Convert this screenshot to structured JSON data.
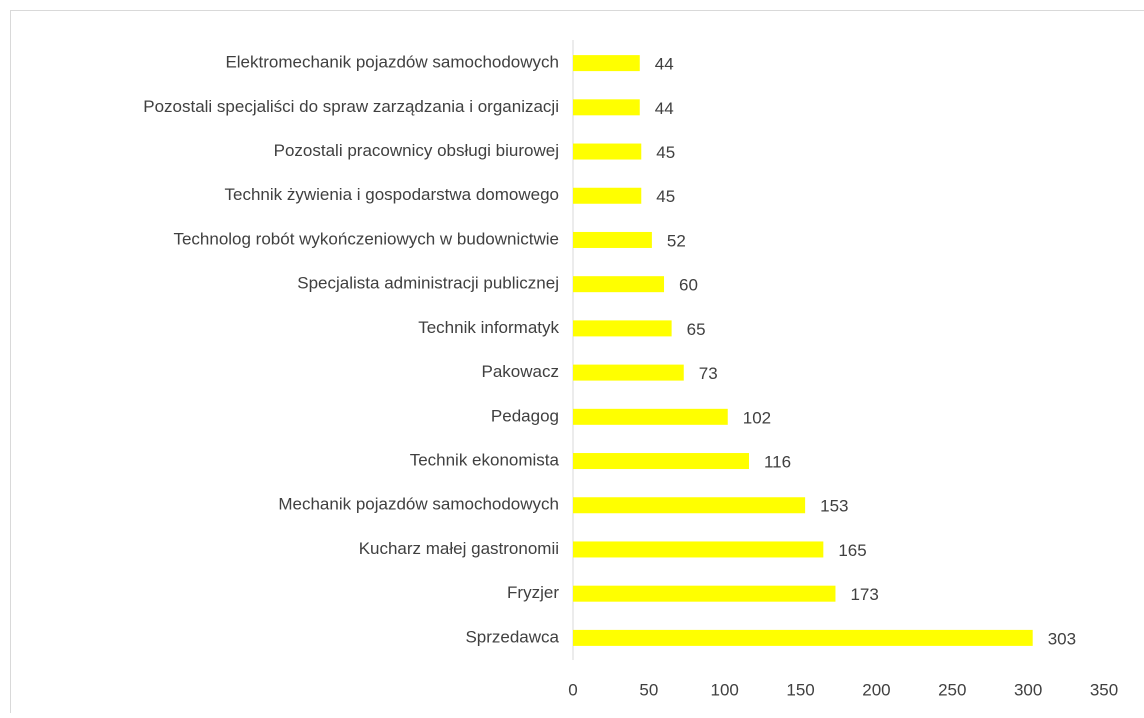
{
  "chart_data": {
    "type": "barh",
    "categories": [
      "Elektromechanik pojazdów samochodowych",
      "Pozostali specjaliści do spraw zarządzania i organizacji",
      "Pozostali pracownicy obsługi biurowej",
      "Technik żywienia i gospodarstwa domowego",
      "Technolog robót wykończeniowych w budownictwie",
      "Specjalista administracji publicznej",
      "Technik informatyk",
      "Pakowacz",
      "Pedagog",
      "Technik ekonomista",
      "Mechanik pojazdów samochodowych",
      "Kucharz małej gastronomii",
      "Fryzjer",
      "Sprzedawca"
    ],
    "values": [
      44,
      44,
      45,
      45,
      52,
      60,
      65,
      73,
      102,
      116,
      153,
      165,
      173,
      303
    ],
    "color": "#ffff00",
    "xlim": [
      0,
      350
    ],
    "xticks": [
      0,
      50,
      100,
      150,
      200,
      250,
      300,
      350
    ],
    "grid": false
  }
}
